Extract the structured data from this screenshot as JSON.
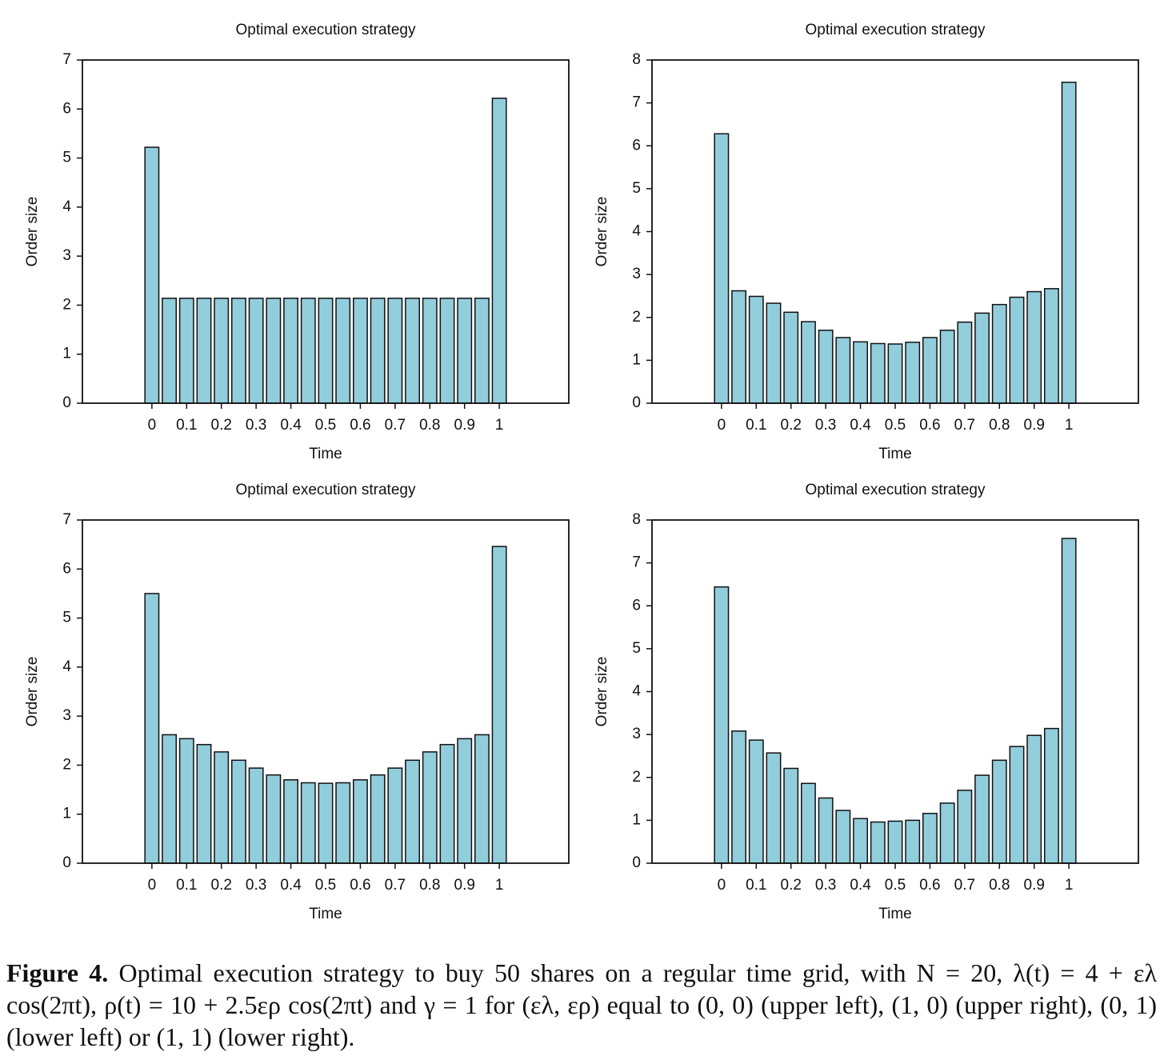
{
  "chart_data": [
    {
      "type": "bar",
      "title": "Optimal execution strategy",
      "xlabel": "Time",
      "ylabel": "Order size",
      "color": "#92cddc",
      "x": [
        0,
        0.05,
        0.1,
        0.15,
        0.2,
        0.25,
        0.3,
        0.35,
        0.4,
        0.45,
        0.5,
        0.55,
        0.6,
        0.65,
        0.7,
        0.75,
        0.8,
        0.85,
        0.9,
        0.95,
        1
      ],
      "values": [
        5.22,
        2.14,
        2.14,
        2.14,
        2.14,
        2.14,
        2.14,
        2.14,
        2.14,
        2.14,
        2.14,
        2.14,
        2.14,
        2.14,
        2.14,
        2.14,
        2.14,
        2.14,
        2.14,
        2.14,
        6.22
      ],
      "xlim": [
        -0.2,
        1.2
      ],
      "xticks": [
        0,
        0.1,
        0.2,
        0.3,
        0.4,
        0.5,
        0.6,
        0.7,
        0.8,
        0.9,
        1
      ],
      "ylim": [
        0,
        7
      ],
      "yticks": [
        0,
        1,
        2,
        3,
        4,
        5,
        6,
        7
      ]
    },
    {
      "type": "bar",
      "title": "Optimal execution strategy",
      "xlabel": "Time",
      "ylabel": "Order size",
      "color": "#92cddc",
      "x": [
        0,
        0.05,
        0.1,
        0.15,
        0.2,
        0.25,
        0.3,
        0.35,
        0.4,
        0.45,
        0.5,
        0.55,
        0.6,
        0.65,
        0.7,
        0.75,
        0.8,
        0.85,
        0.9,
        0.95,
        1
      ],
      "values": [
        6.28,
        2.62,
        2.49,
        2.33,
        2.12,
        1.9,
        1.7,
        1.53,
        1.43,
        1.39,
        1.38,
        1.42,
        1.53,
        1.7,
        1.89,
        2.1,
        2.3,
        2.47,
        2.6,
        2.67,
        7.48
      ],
      "xlim": [
        -0.2,
        1.2
      ],
      "xticks": [
        0,
        0.1,
        0.2,
        0.3,
        0.4,
        0.5,
        0.6,
        0.7,
        0.8,
        0.9,
        1
      ],
      "ylim": [
        0,
        8
      ],
      "yticks": [
        0,
        1,
        2,
        3,
        4,
        5,
        6,
        7,
        8
      ]
    },
    {
      "type": "bar",
      "title": "Optimal execution strategy",
      "xlabel": "Time",
      "ylabel": "Order size",
      "color": "#92cddc",
      "x": [
        0,
        0.05,
        0.1,
        0.15,
        0.2,
        0.25,
        0.3,
        0.35,
        0.4,
        0.45,
        0.5,
        0.55,
        0.6,
        0.65,
        0.7,
        0.75,
        0.8,
        0.85,
        0.9,
        0.95,
        1
      ],
      "values": [
        5.5,
        2.62,
        2.54,
        2.42,
        2.27,
        2.1,
        1.94,
        1.8,
        1.7,
        1.64,
        1.63,
        1.64,
        1.7,
        1.8,
        1.94,
        2.1,
        2.27,
        2.42,
        2.54,
        2.62,
        6.46
      ],
      "xlim": [
        -0.2,
        1.2
      ],
      "xticks": [
        0,
        0.1,
        0.2,
        0.3,
        0.4,
        0.5,
        0.6,
        0.7,
        0.8,
        0.9,
        1
      ],
      "ylim": [
        0,
        7
      ],
      "yticks": [
        0,
        1,
        2,
        3,
        4,
        5,
        6,
        7
      ]
    },
    {
      "type": "bar",
      "title": "Optimal execution strategy",
      "xlabel": "Time",
      "ylabel": "Order size",
      "color": "#92cddc",
      "x": [
        0,
        0.05,
        0.1,
        0.15,
        0.2,
        0.25,
        0.3,
        0.35,
        0.4,
        0.45,
        0.5,
        0.55,
        0.6,
        0.65,
        0.7,
        0.75,
        0.8,
        0.85,
        0.9,
        0.95,
        1
      ],
      "values": [
        6.44,
        3.08,
        2.87,
        2.57,
        2.21,
        1.86,
        1.52,
        1.23,
        1.04,
        0.96,
        0.98,
        1.0,
        1.16,
        1.4,
        1.7,
        2.05,
        2.4,
        2.72,
        2.98,
        3.14,
        7.57
      ],
      "xlim": [
        -0.2,
        1.2
      ],
      "xticks": [
        0,
        0.1,
        0.2,
        0.3,
        0.4,
        0.5,
        0.6,
        0.7,
        0.8,
        0.9,
        1
      ],
      "ylim": [
        0,
        8
      ],
      "yticks": [
        0,
        1,
        2,
        3,
        4,
        5,
        6,
        7,
        8
      ]
    }
  ],
  "caption": {
    "label": "Figure 4.",
    "text": "Optimal execution strategy to buy 50 shares on a regular time grid, with N = 20, λ(t) = 4 + ελ cos(2πt), ρ(t) = 10 + 2.5ερ cos(2πt) and γ = 1 for (ελ, ερ) equal to (0, 0) (upper left), (1, 0) (upper right), (0, 1) (lower left) or (1, 1) (lower right)."
  }
}
